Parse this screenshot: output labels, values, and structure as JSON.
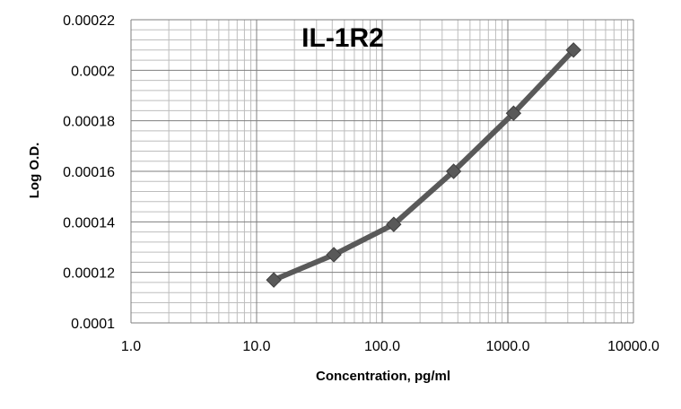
{
  "chart_data": {
    "type": "line",
    "title": "IL-1R2",
    "xlabel": "Concentration, pg/ml",
    "ylabel": "Log O.D.",
    "x_scale": "log",
    "xlim": [
      1,
      10000
    ],
    "ylim": [
      0.0001,
      0.00022
    ],
    "x_tick_labels": [
      "1.0",
      "10.0",
      "100.0",
      "1000.0",
      "10000.0"
    ],
    "y_tick_labels": [
      "0.0001",
      "0.00012",
      "0.00014",
      "0.00016",
      "0.00018",
      "0.0002",
      "0.00022"
    ],
    "grid": true,
    "legend": "none",
    "series": [
      {
        "color": "#595959",
        "marker": "diamond",
        "x": [
          13.7,
          41.2,
          123.5,
          370.4,
          1111,
          3333
        ],
        "y": [
          0.000117,
          0.000127,
          0.000139,
          0.00016,
          0.000183,
          0.000208
        ]
      }
    ]
  }
}
